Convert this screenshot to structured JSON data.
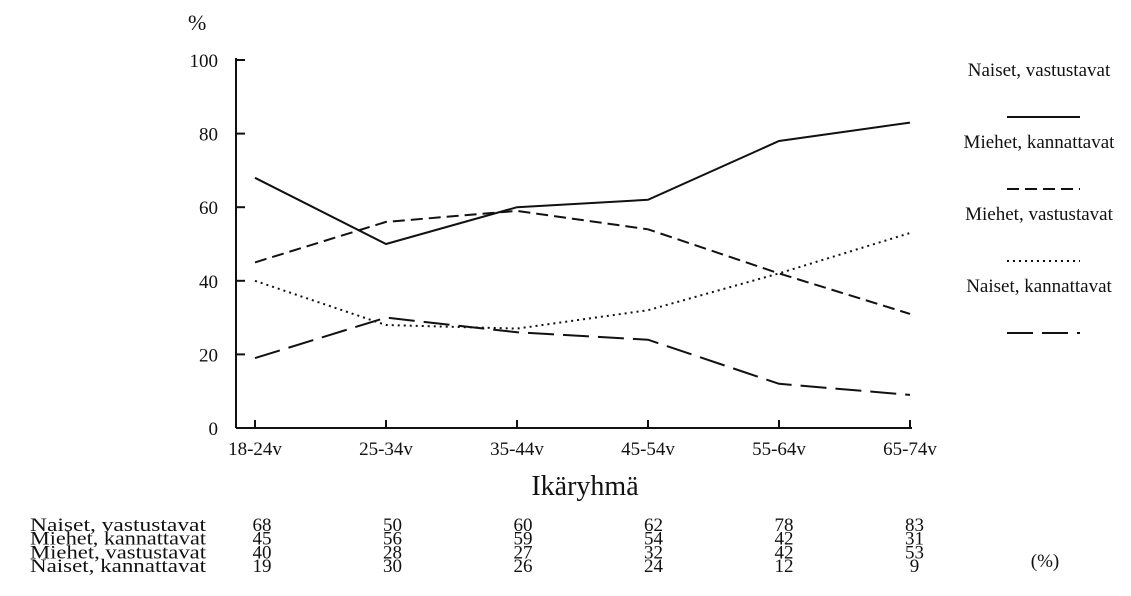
{
  "chart_data": {
    "type": "line",
    "title": "",
    "ylabel": "%",
    "xlabel": "Ikäryhmä",
    "categories": [
      "18-24v",
      "25-34v",
      "35-44v",
      "45-54v",
      "55-64v",
      "65-74v"
    ],
    "ylim": [
      0,
      100
    ],
    "yticks": [
      0,
      20,
      40,
      60,
      80,
      100
    ],
    "grid": false,
    "legend_position": "right",
    "series": [
      {
        "name": "Naiset, vastustavat",
        "style": "solid",
        "values": [
          68,
          50,
          60,
          62,
          78,
          83
        ]
      },
      {
        "name": "Miehet, kannattavat",
        "style": "dashed",
        "values": [
          45,
          56,
          59,
          54,
          42,
          31
        ]
      },
      {
        "name": "Miehet, vastustavat",
        "style": "dotted",
        "values": [
          40,
          28,
          27,
          32,
          42,
          53
        ]
      },
      {
        "name": "Naiset, kannattavat",
        "style": "long-dash",
        "values": [
          19,
          30,
          26,
          24,
          12,
          9
        ]
      }
    ],
    "table_unit": "(%)",
    "line_color": "#111111"
  }
}
